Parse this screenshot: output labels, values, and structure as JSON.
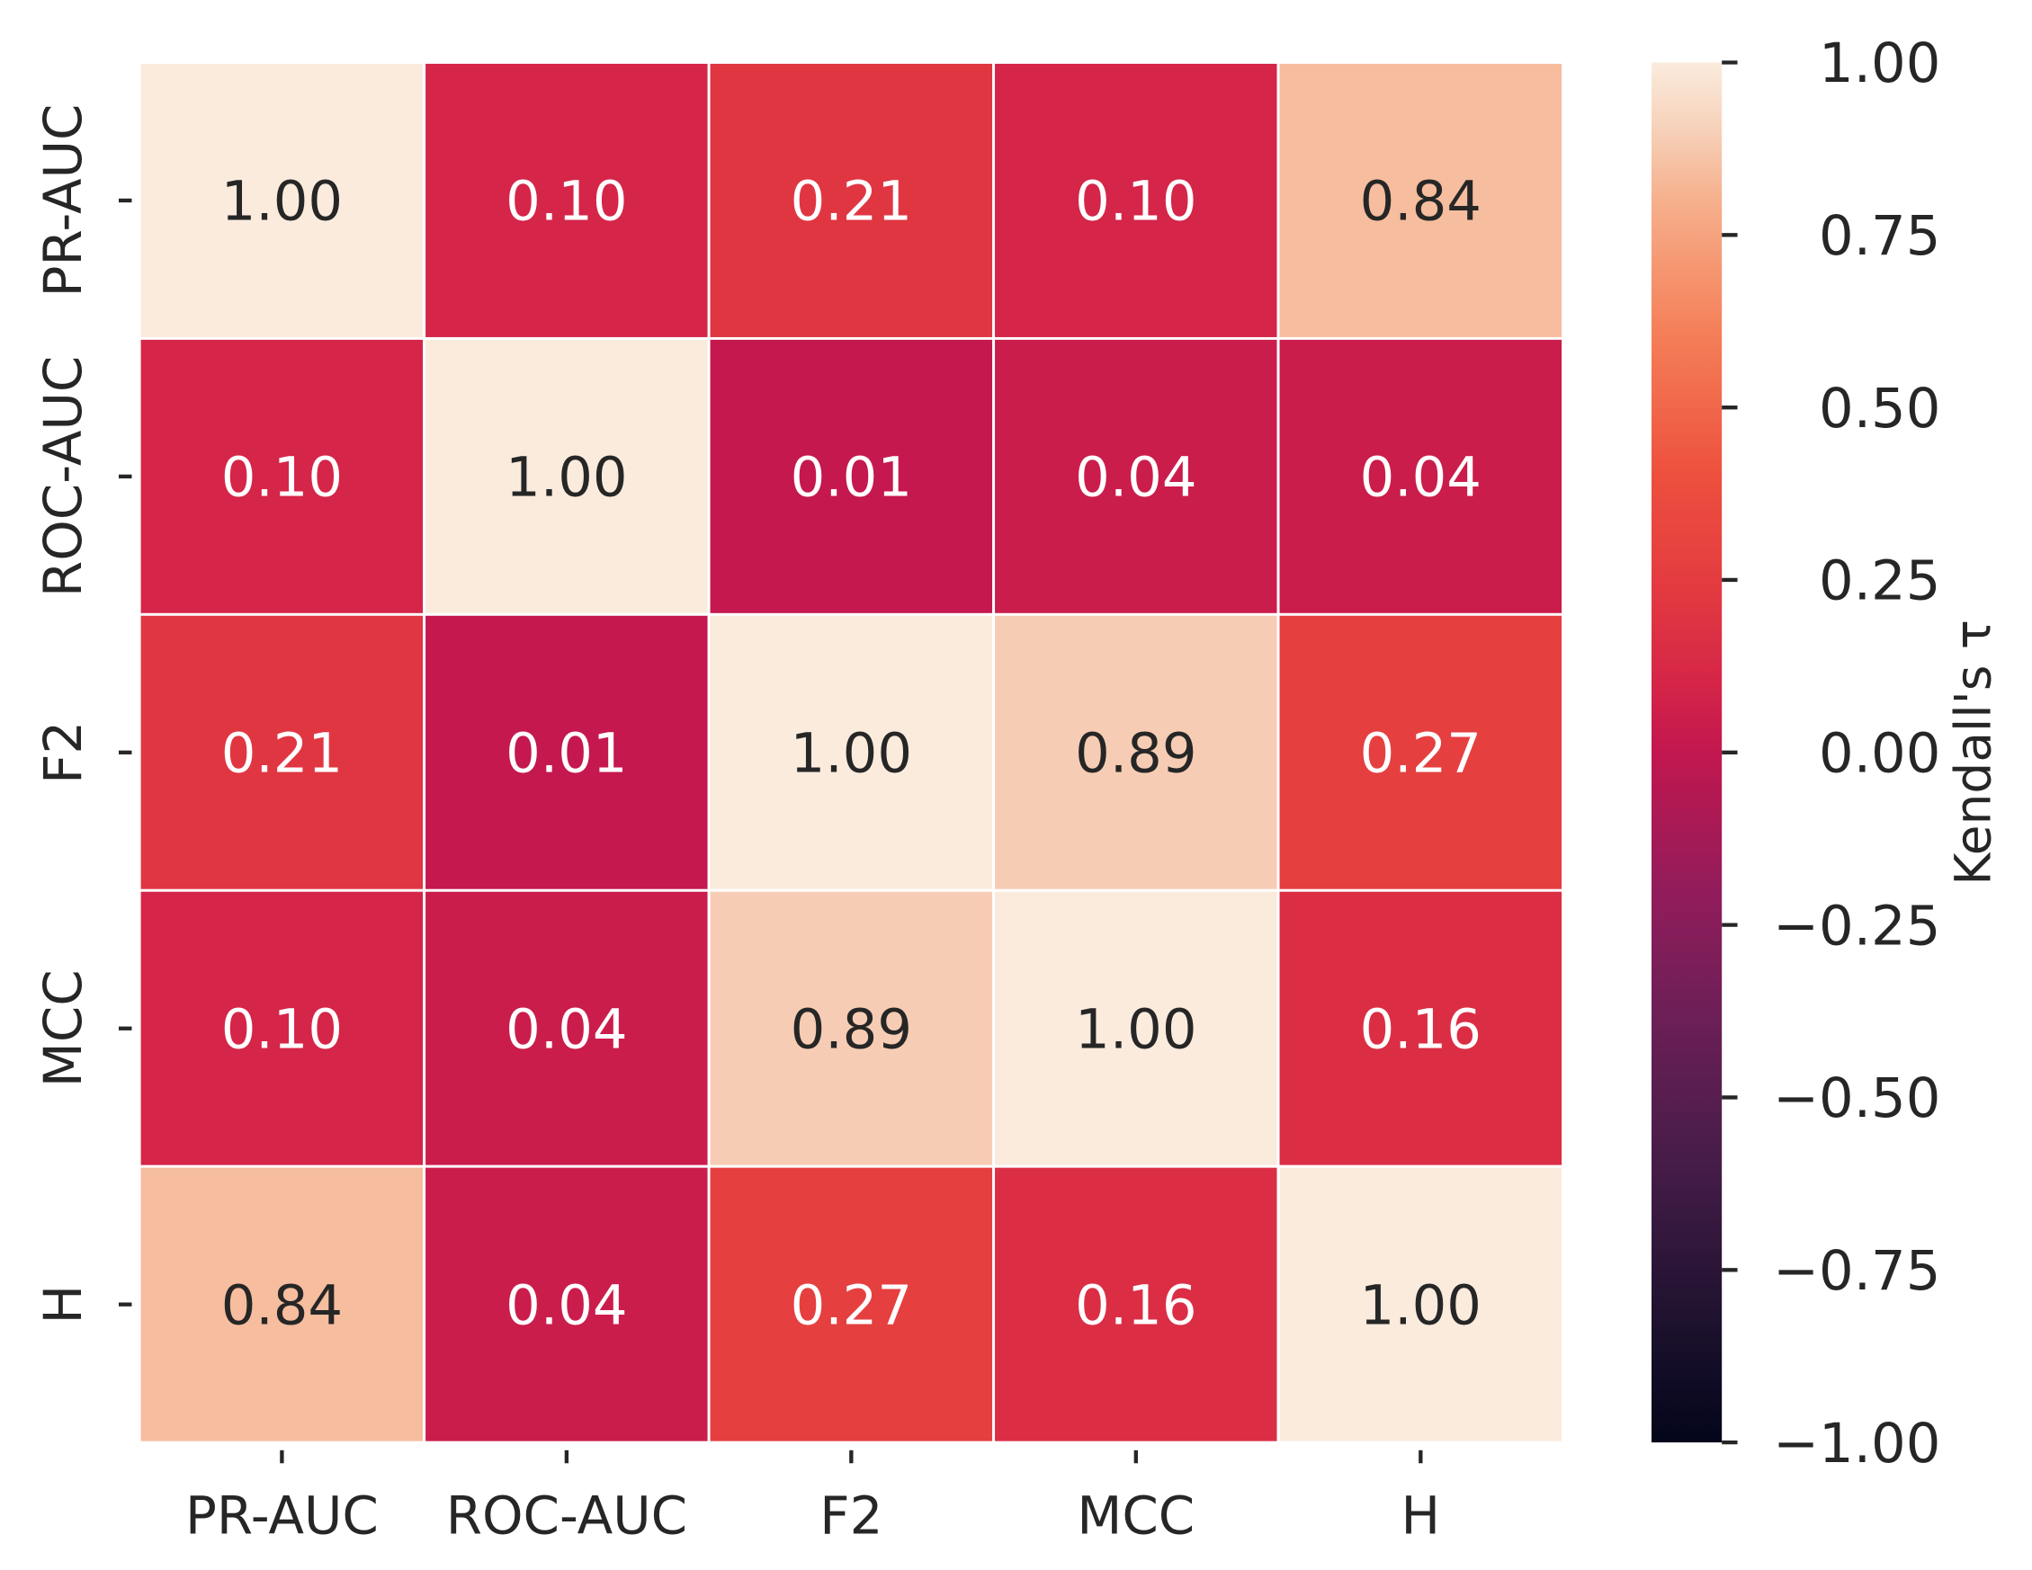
{
  "chart_data": {
    "type": "heatmap",
    "title": "",
    "row_labels": [
      "PR-AUC",
      "ROC-AUC",
      "F2",
      "MCC",
      "H"
    ],
    "col_labels": [
      "PR-AUC",
      "ROC-AUC",
      "F2",
      "MCC",
      "H"
    ],
    "values": [
      [
        1.0,
        0.1,
        0.21,
        0.1,
        0.84
      ],
      [
        0.1,
        1.0,
        0.01,
        0.04,
        0.04
      ],
      [
        0.21,
        0.01,
        1.0,
        0.89,
        0.27
      ],
      [
        0.1,
        0.04,
        0.89,
        1.0,
        0.16
      ],
      [
        0.84,
        0.04,
        0.27,
        0.16,
        1.0
      ]
    ],
    "annotations": [
      [
        "1.00",
        "0.10",
        "0.21",
        "0.10",
        "0.84"
      ],
      [
        "0.10",
        "1.00",
        "0.01",
        "0.04",
        "0.04"
      ],
      [
        "0.21",
        "0.01",
        "1.00",
        "0.89",
        "0.27"
      ],
      [
        "0.10",
        "0.04",
        "0.89",
        "1.00",
        "0.16"
      ],
      [
        "0.84",
        "0.04",
        "0.27",
        "0.16",
        "1.00"
      ]
    ],
    "colormap": "rocket",
    "vmin": -1.0,
    "vmax": 1.0,
    "colorbar": {
      "label": "Kendall's τ",
      "ticks": [
        1.0,
        0.75,
        0.5,
        0.25,
        0.0,
        -0.25,
        -0.5,
        -0.75,
        -1.0
      ],
      "tick_labels": [
        "1.00",
        "0.75",
        "0.50",
        "0.25",
        "0.00",
        "−0.25",
        "−0.50",
        "−0.75",
        "−1.00"
      ]
    }
  }
}
